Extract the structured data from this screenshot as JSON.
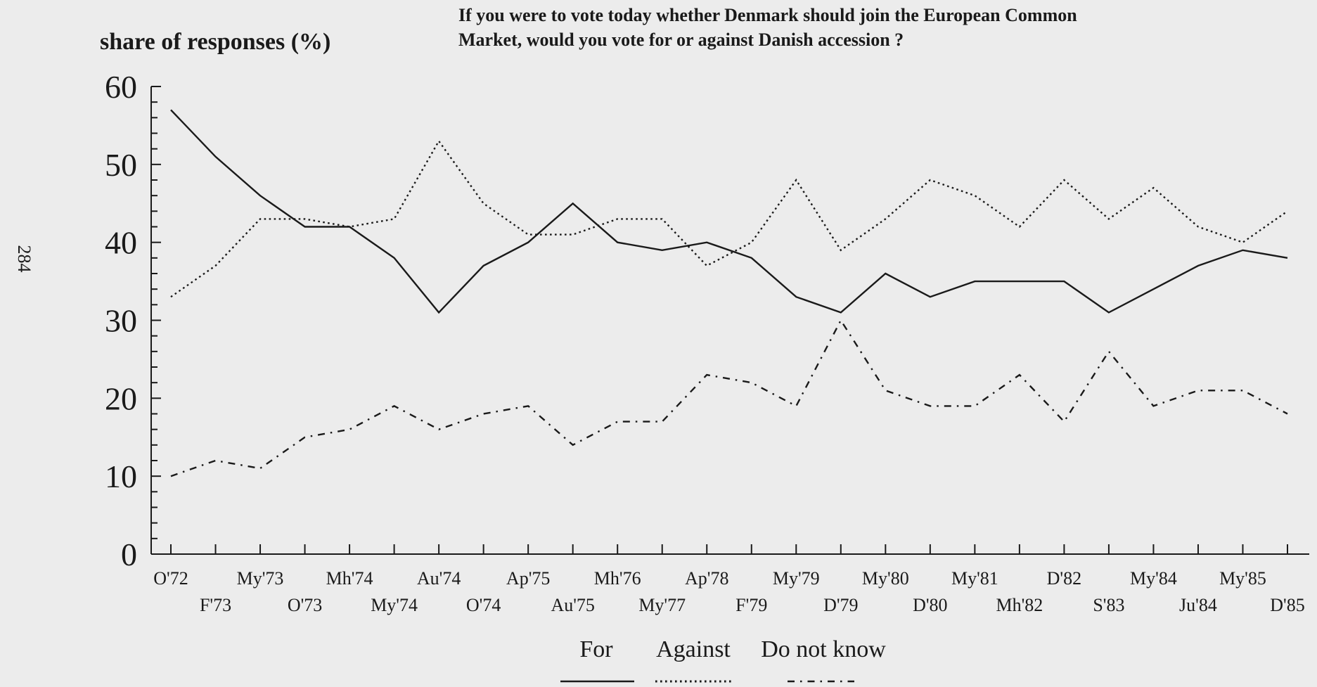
{
  "page_number": "284",
  "chart_data": {
    "type": "line",
    "title": "If you were to vote today whether Denmark should join the European Common Market, would you vote for or against Danish accession ?",
    "title_lines": [
      "If you were to vote today whether Denmark should join the European Common",
      "Market, would you vote for or against Danish accession ?"
    ],
    "ylabel": "share of responses (%)",
    "xlabel": "",
    "ylim": [
      0,
      60
    ],
    "yticks": [
      0,
      10,
      20,
      30,
      40,
      50,
      60
    ],
    "grid": false,
    "legend_position": "bottom-center",
    "categories": [
      "O'72",
      "F'73",
      "My'73",
      "O'73",
      "Mh'74",
      "My'74",
      "Au'74",
      "O'74",
      "Ap'75",
      "Au'75",
      "Mh'76",
      "My'77",
      "Ap'78",
      "F'79",
      "My'79",
      "D'79",
      "My'80",
      "D'80",
      "My'81",
      "Mh'82",
      "D'82",
      "S'83",
      "My'84",
      "Ju'84",
      "My'85",
      "D'85"
    ],
    "series": [
      {
        "name": "For",
        "style": "solid",
        "values": [
          57,
          51,
          46,
          42,
          42,
          38,
          31,
          37,
          40,
          45,
          40,
          39,
          40,
          38,
          33,
          31,
          36,
          33,
          35,
          35,
          35,
          31,
          34,
          37,
          39,
          38
        ]
      },
      {
        "name": "Against",
        "style": "dotted",
        "values": [
          33,
          37,
          43,
          43,
          42,
          43,
          53,
          45,
          41,
          41,
          43,
          43,
          37,
          40,
          48,
          39,
          43,
          48,
          46,
          42,
          48,
          43,
          47,
          42,
          40,
          44
        ]
      },
      {
        "name": "Do not know",
        "style": "dash-dot",
        "values": [
          10,
          12,
          11,
          15,
          16,
          19,
          16,
          18,
          19,
          14,
          17,
          17,
          23,
          22,
          19,
          30,
          21,
          19,
          19,
          23,
          17,
          26,
          19,
          21,
          21,
          18
        ]
      }
    ]
  }
}
